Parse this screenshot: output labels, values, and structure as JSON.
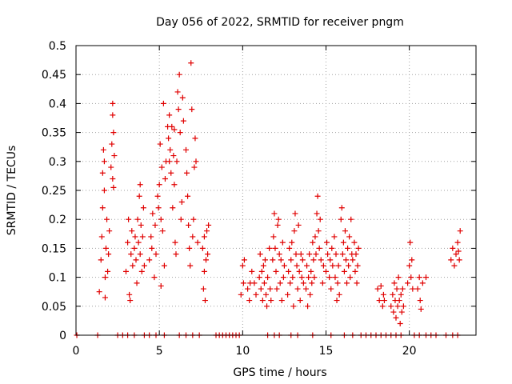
{
  "chart_data": {
    "type": "scatter",
    "title": "Day 056 of 2022, SRMTID for receiver pngm",
    "xlabel": "GPS time / hours",
    "ylabel": "SRMTID / TECUs",
    "xlim": [
      0,
      24
    ],
    "ylim": [
      0,
      0.5
    ],
    "xticks": [
      0,
      5,
      10,
      15,
      20
    ],
    "xtick_labels": [
      "0",
      "5",
      "10",
      "15",
      "20"
    ],
    "yticks": [
      0,
      0.05,
      0.1,
      0.15,
      0.2,
      0.25,
      0.3,
      0.35,
      0.4,
      0.45,
      0.5
    ],
    "ytick_labels": [
      "0",
      "0.05",
      "0.1",
      "0.15",
      "0.2",
      "0.25",
      "0.3",
      "0.35",
      "0.4",
      "0.45",
      "0.5"
    ],
    "grid": true,
    "marker": "+",
    "series": [
      {
        "name": "SRMTID",
        "color": "#e00000",
        "points": [
          [
            0.05,
            0
          ],
          [
            1.3,
            0
          ],
          [
            2.5,
            0
          ],
          [
            2.8,
            0
          ],
          [
            3.1,
            0
          ],
          [
            3.5,
            0
          ],
          [
            4.1,
            0
          ],
          [
            4.4,
            0
          ],
          [
            4.8,
            0
          ],
          [
            5.3,
            0
          ],
          [
            6.2,
            0
          ],
          [
            6.6,
            0
          ],
          [
            7.0,
            0
          ],
          [
            7.4,
            0
          ],
          [
            8.4,
            0
          ],
          [
            8.6,
            0
          ],
          [
            8.8,
            0
          ],
          [
            9.0,
            0
          ],
          [
            9.2,
            0
          ],
          [
            9.4,
            0
          ],
          [
            9.6,
            0
          ],
          [
            9.8,
            0
          ],
          [
            11.5,
            0
          ],
          [
            11.9,
            0
          ],
          [
            12.2,
            0
          ],
          [
            12.9,
            0
          ],
          [
            13.3,
            0
          ],
          [
            14.2,
            0
          ],
          [
            15.3,
            0
          ],
          [
            16.1,
            0
          ],
          [
            16.6,
            0
          ],
          [
            17.1,
            0
          ],
          [
            17.4,
            0
          ],
          [
            17.7,
            0
          ],
          [
            18.0,
            0
          ],
          [
            18.3,
            0
          ],
          [
            18.6,
            0
          ],
          [
            18.9,
            0
          ],
          [
            19.2,
            0
          ],
          [
            19.5,
            0
          ],
          [
            20.3,
            0
          ],
          [
            20.6,
            0
          ],
          [
            21.0,
            0
          ],
          [
            21.3,
            0
          ],
          [
            21.6,
            0
          ],
          [
            22.2,
            0
          ],
          [
            22.6,
            0
          ],
          [
            22.9,
            0
          ],
          [
            1.4,
            0.075
          ],
          [
            1.5,
            0.13
          ],
          [
            1.55,
            0.17
          ],
          [
            1.6,
            0.22
          ],
          [
            1.6,
            0.28
          ],
          [
            1.65,
            0.32
          ],
          [
            1.7,
            0.25
          ],
          [
            1.7,
            0.3
          ],
          [
            1.75,
            0.1
          ],
          [
            1.8,
            0.15
          ],
          [
            1.85,
            0.2
          ],
          [
            1.9,
            0.11
          ],
          [
            1.95,
            0.14
          ],
          [
            2.0,
            0.18
          ],
          [
            1.75,
            0.065
          ],
          [
            2.1,
            0.29
          ],
          [
            2.15,
            0.33
          ],
          [
            2.2,
            0.38
          ],
          [
            2.2,
            0.4
          ],
          [
            2.25,
            0.35
          ],
          [
            2.3,
            0.31
          ],
          [
            2.25,
            0.255
          ],
          [
            2.2,
            0.27
          ],
          [
            3.0,
            0.11
          ],
          [
            3.1,
            0.16
          ],
          [
            3.15,
            0.2
          ],
          [
            3.2,
            0.07
          ],
          [
            3.25,
            0.06
          ],
          [
            3.3,
            0.14
          ],
          [
            3.35,
            0.18
          ],
          [
            3.4,
            0.12
          ],
          [
            3.5,
            0.15
          ],
          [
            3.55,
            0.17
          ],
          [
            3.6,
            0.13
          ],
          [
            3.65,
            0.09
          ],
          [
            3.7,
            0.2
          ],
          [
            3.75,
            0.16
          ],
          [
            3.8,
            0.24
          ],
          [
            3.85,
            0.14
          ],
          [
            3.9,
            0.19
          ],
          [
            3.95,
            0.11
          ],
          [
            4.0,
            0.17
          ],
          [
            4.05,
            0.22
          ],
          [
            4.1,
            0.12
          ],
          [
            3.85,
            0.26
          ],
          [
            4.4,
            0.13
          ],
          [
            4.5,
            0.17
          ],
          [
            4.55,
            0.15
          ],
          [
            4.6,
            0.21
          ],
          [
            4.7,
            0.1
          ],
          [
            4.75,
            0.19
          ],
          [
            4.8,
            0.14
          ],
          [
            4.9,
            0.24
          ],
          [
            4.95,
            0.22
          ],
          [
            5.0,
            0.26
          ],
          [
            5.05,
            0.33
          ],
          [
            5.1,
            0.2
          ],
          [
            5.15,
            0.29
          ],
          [
            5.2,
            0.18
          ],
          [
            5.25,
            0.4
          ],
          [
            5.3,
            0.12
          ],
          [
            5.35,
            0.27
          ],
          [
            5.1,
            0.085
          ],
          [
            5.4,
            0.3
          ],
          [
            5.5,
            0.36
          ],
          [
            5.55,
            0.34
          ],
          [
            5.6,
            0.38
          ],
          [
            5.65,
            0.32
          ],
          [
            5.7,
            0.28
          ],
          [
            5.75,
            0.36
          ],
          [
            5.8,
            0.22
          ],
          [
            5.85,
            0.31
          ],
          [
            5.9,
            0.26
          ],
          [
            5.95,
            0.16
          ],
          [
            6.0,
            0.14
          ],
          [
            6.05,
            0.3
          ],
          [
            6.1,
            0.42
          ],
          [
            6.15,
            0.39
          ],
          [
            6.2,
            0.45
          ],
          [
            6.25,
            0.35
          ],
          [
            6.3,
            0.2
          ],
          [
            6.35,
            0.23
          ],
          [
            6.4,
            0.41
          ],
          [
            6.45,
            0.37
          ],
          [
            5.6,
            0.3
          ],
          [
            5.9,
            0.355
          ],
          [
            6.6,
            0.32
          ],
          [
            6.65,
            0.28
          ],
          [
            6.7,
            0.24
          ],
          [
            6.75,
            0.19
          ],
          [
            6.8,
            0.15
          ],
          [
            6.85,
            0.12
          ],
          [
            6.9,
            0.47
          ],
          [
            6.95,
            0.39
          ],
          [
            7.0,
            0.17
          ],
          [
            7.05,
            0.2
          ],
          [
            7.1,
            0.29
          ],
          [
            7.15,
            0.34
          ],
          [
            7.2,
            0.3
          ],
          [
            7.3,
            0.16
          ],
          [
            7.6,
            0.15
          ],
          [
            7.65,
            0.08
          ],
          [
            7.7,
            0.11
          ],
          [
            7.75,
            0.06
          ],
          [
            7.8,
            0.13
          ],
          [
            7.85,
            0.18
          ],
          [
            7.9,
            0.14
          ],
          [
            7.95,
            0.19
          ],
          [
            7.7,
            0.17
          ],
          [
            9.9,
            0.07
          ],
          [
            10.0,
            0.12
          ],
          [
            10.05,
            0.09
          ],
          [
            10.1,
            0.13
          ],
          [
            10.3,
            0.08
          ],
          [
            10.4,
            0.06
          ],
          [
            10.45,
            0.09
          ],
          [
            10.55,
            0.11
          ],
          [
            10.7,
            0.09
          ],
          [
            10.8,
            0.07
          ],
          [
            11.0,
            0.1
          ],
          [
            11.05,
            0.14
          ],
          [
            11.1,
            0.08
          ],
          [
            11.15,
            0.11
          ],
          [
            11.2,
            0.06
          ],
          [
            11.25,
            0.12
          ],
          [
            11.3,
            0.09
          ],
          [
            11.35,
            0.13
          ],
          [
            11.4,
            0.07
          ],
          [
            11.45,
            0.05
          ],
          [
            11.5,
            0.1
          ],
          [
            11.6,
            0.15
          ],
          [
            11.65,
            0.08
          ],
          [
            11.7,
            0.06
          ],
          [
            11.8,
            0.13
          ],
          [
            11.85,
            0.17
          ],
          [
            11.9,
            0.21
          ],
          [
            11.95,
            0.15
          ],
          [
            12.0,
            0.11
          ],
          [
            12.05,
            0.08
          ],
          [
            12.1,
            0.19
          ],
          [
            12.15,
            0.2
          ],
          [
            12.2,
            0.14
          ],
          [
            12.25,
            0.09
          ],
          [
            12.3,
            0.13
          ],
          [
            12.35,
            0.06
          ],
          [
            12.4,
            0.16
          ],
          [
            12.45,
            0.1
          ],
          [
            12.5,
            0.12
          ],
          [
            12.7,
            0.07
          ],
          [
            12.75,
            0.11
          ],
          [
            12.8,
            0.15
          ],
          [
            12.85,
            0.09
          ],
          [
            12.9,
            0.13
          ],
          [
            12.95,
            0.16
          ],
          [
            13.0,
            0.1
          ],
          [
            13.05,
            0.05
          ],
          [
            13.1,
            0.18
          ],
          [
            13.15,
            0.21
          ],
          [
            13.2,
            0.14
          ],
          [
            13.25,
            0.12
          ],
          [
            13.3,
            0.08
          ],
          [
            13.35,
            0.19
          ],
          [
            13.4,
            0.11
          ],
          [
            13.45,
            0.06
          ],
          [
            13.5,
            0.14
          ],
          [
            13.55,
            0.1
          ],
          [
            13.6,
            0.13
          ],
          [
            13.65,
            0.09
          ],
          [
            13.8,
            0.08
          ],
          [
            13.85,
            0.12
          ],
          [
            13.9,
            0.05
          ],
          [
            13.95,
            0.1
          ],
          [
            14.0,
            0.14
          ],
          [
            14.05,
            0.07
          ],
          [
            14.1,
            0.11
          ],
          [
            14.15,
            0.09
          ],
          [
            14.2,
            0.16
          ],
          [
            14.25,
            0.13
          ],
          [
            14.3,
            0.1
          ],
          [
            14.35,
            0.17
          ],
          [
            14.4,
            0.14
          ],
          [
            14.45,
            0.21
          ],
          [
            14.5,
            0.24
          ],
          [
            14.55,
            0.18
          ],
          [
            14.6,
            0.15
          ],
          [
            14.65,
            0.2
          ],
          [
            14.7,
            0.13
          ],
          [
            14.8,
            0.09
          ],
          [
            14.85,
            0.12
          ],
          [
            15.0,
            0.11
          ],
          [
            15.05,
            0.16
          ],
          [
            15.1,
            0.14
          ],
          [
            15.2,
            0.1
          ],
          [
            15.25,
            0.13
          ],
          [
            15.3,
            0.08
          ],
          [
            15.35,
            0.15
          ],
          [
            15.4,
            0.12
          ],
          [
            15.5,
            0.17
          ],
          [
            15.55,
            0.1
          ],
          [
            15.6,
            0.14
          ],
          [
            15.65,
            0.06
          ],
          [
            15.7,
            0.09
          ],
          [
            15.75,
            0.12
          ],
          [
            15.8,
            0.07
          ],
          [
            15.9,
            0.2
          ],
          [
            15.95,
            0.22
          ],
          [
            16.0,
            0.14
          ],
          [
            16.05,
            0.16
          ],
          [
            16.1,
            0.11
          ],
          [
            16.15,
            0.18
          ],
          [
            16.2,
            0.13
          ],
          [
            16.25,
            0.09
          ],
          [
            16.3,
            0.15
          ],
          [
            16.35,
            0.12
          ],
          [
            16.4,
            0.17
          ],
          [
            16.45,
            0.1
          ],
          [
            16.5,
            0.2
          ],
          [
            16.55,
            0.14
          ],
          [
            16.6,
            0.13
          ],
          [
            16.7,
            0.16
          ],
          [
            16.75,
            0.11
          ],
          [
            16.8,
            0.14
          ],
          [
            16.85,
            0.09
          ],
          [
            16.9,
            0.12
          ],
          [
            16.95,
            0.15
          ],
          [
            18.1,
            0.08
          ],
          [
            18.2,
            0.06
          ],
          [
            18.3,
            0.085
          ],
          [
            18.4,
            0.05
          ],
          [
            18.45,
            0.07
          ],
          [
            18.5,
            0.06
          ],
          [
            18.9,
            0.05
          ],
          [
            19.0,
            0.07
          ],
          [
            19.05,
            0.04
          ],
          [
            19.1,
            0.09
          ],
          [
            19.15,
            0.06
          ],
          [
            19.2,
            0.03
          ],
          [
            19.25,
            0.08
          ],
          [
            19.3,
            0.05
          ],
          [
            19.35,
            0.1
          ],
          [
            19.4,
            0.06
          ],
          [
            19.45,
            0.02
          ],
          [
            19.5,
            0.07
          ],
          [
            19.55,
            0.04
          ],
          [
            19.6,
            0.08
          ],
          [
            19.65,
            0.05
          ],
          [
            19.9,
            0.09
          ],
          [
            20.0,
            0.12
          ],
          [
            20.05,
            0.16
          ],
          [
            20.1,
            0.1
          ],
          [
            20.15,
            0.13
          ],
          [
            20.2,
            0.08
          ],
          [
            20.5,
            0.08
          ],
          [
            20.6,
            0.1
          ],
          [
            20.65,
            0.06
          ],
          [
            20.7,
            0.045
          ],
          [
            20.8,
            0.09
          ],
          [
            21.0,
            0.1
          ],
          [
            22.5,
            0.13
          ],
          [
            22.6,
            0.15
          ],
          [
            22.7,
            0.12
          ],
          [
            22.8,
            0.14
          ],
          [
            22.9,
            0.16
          ],
          [
            23.0,
            0.13
          ],
          [
            23.05,
            0.18
          ],
          [
            22.95,
            0.145
          ]
        ]
      }
    ]
  }
}
